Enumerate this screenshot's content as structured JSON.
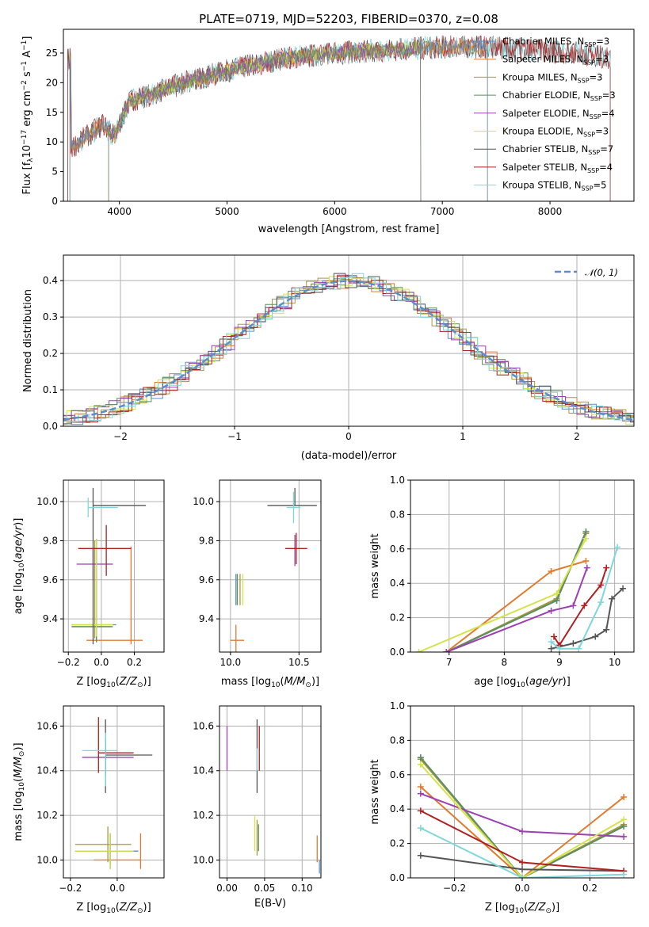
{
  "figure": {
    "title": "PLATE=0719, MJD=52203, FIBERID=0370, z=0.08"
  },
  "colors": {
    "Chabrier MILES": "#5b8ccc",
    "Salpeter MILES": "#e07b2e",
    "Kroupa MILES": "#a89a3a",
    "Chabrier ELODIE": "#5e8f5e",
    "Salpeter ELODIE": "#9b3fb3",
    "Kroupa ELODIE": "#d4e34a",
    "Chabrier STELIB": "#555555",
    "Salpeter STELIB": "#b01f1f",
    "Kroupa STELIB": "#7fd6dc"
  },
  "chart_data": [
    {
      "id": "spectrum",
      "type": "line",
      "title": "PLATE=0719, MJD=52203, FIBERID=0370, z=0.08",
      "xlabel": "wavelength [Angstrom, rest frame]",
      "ylabel": "Flux [f_λ 10^-17 erg cm^-2 s^-1 A^-1]",
      "xlim": [
        3480,
        8780
      ],
      "ylim": [
        0,
        29
      ],
      "xticks": [
        4000,
        5000,
        6000,
        7000,
        8000
      ],
      "yticks": [
        0,
        5,
        10,
        15,
        20,
        25
      ],
      "grid": false,
      "legend_position": "right",
      "legend": [
        {
          "label": "Chabrier MILES, N",
          "sub": "SSP",
          "suffix": "=3",
          "model": "Chabrier MILES"
        },
        {
          "label": "Salpeter MILES, N",
          "sub": "SSP",
          "suffix": "=3",
          "model": "Salpeter MILES"
        },
        {
          "label": "Kroupa MILES, N",
          "sub": "SSP",
          "suffix": "=3",
          "model": "Kroupa MILES"
        },
        {
          "label": "Chabrier ELODIE, N",
          "sub": "SSP",
          "suffix": "=3",
          "model": "Chabrier ELODIE"
        },
        {
          "label": "Salpeter ELODIE, N",
          "sub": "SSP",
          "suffix": "=4",
          "model": "Salpeter ELODIE"
        },
        {
          "label": "Kroupa ELODIE, N",
          "sub": "SSP",
          "suffix": "=3",
          "model": "Kroupa ELODIE"
        },
        {
          "label": "Chabrier STELIB, N",
          "sub": "SSP",
          "suffix": "=7",
          "model": "Chabrier STELIB"
        },
        {
          "label": "Salpeter STELIB, N",
          "sub": "SSP",
          "suffix": "=4",
          "model": "Salpeter STELIB"
        },
        {
          "label": "Kroupa STELIB, N",
          "sub": "SSP",
          "suffix": "=5",
          "model": "Kroupa STELIB"
        }
      ],
      "continuum": {
        "x": [
          3550,
          3700,
          3850,
          3950,
          4100,
          4300,
          4600,
          5000,
          5500,
          6000,
          6500,
          7000,
          7400,
          7800,
          8300,
          8550
        ],
        "y": [
          9,
          11,
          13,
          11,
          17,
          18,
          20,
          22,
          24,
          25,
          25.5,
          26,
          26,
          25.5,
          25,
          24
        ]
      },
      "ranges": {
        "MILES": [
          3540,
          7420
        ],
        "ELODIE": [
          3900,
          6800
        ],
        "STELIB": [
          3520,
          8560
        ]
      }
    },
    {
      "id": "residuals",
      "type": "histogram",
      "xlabel": "(data-model)/error",
      "ylabel": "Normed distribution",
      "xlim": [
        -2.5,
        2.5
      ],
      "ylim": [
        0,
        0.47
      ],
      "xticks": [
        -2,
        -1,
        0,
        1,
        2
      ],
      "yticks": [
        0.0,
        0.1,
        0.2,
        0.3,
        0.4
      ],
      "grid": true,
      "legend_position": "top-right",
      "reference_curve": {
        "label": "𝒩(0, 1)",
        "style": "dashed",
        "color": "#5b8ccc"
      },
      "bin_width": 0.1
    },
    {
      "id": "age_vs_Z",
      "type": "errorbar",
      "xlabel": "Z [log10(Z/Z☉)]",
      "ylabel": "age [log10(age/yr)]",
      "xlim": [
        -0.23,
        0.38
      ],
      "ylim": [
        9.23,
        10.11
      ],
      "xticks": [
        -0.2,
        0.0,
        0.2
      ],
      "yticks": [
        9.4,
        9.6,
        9.8,
        10.0
      ],
      "grid": true,
      "points": [
        {
          "model": "Chabrier MILES",
          "x": -0.03,
          "xerr": [
            0.15,
            0.12
          ],
          "y": 9.37,
          "yerr": [
            0.09,
            0.44
          ]
        },
        {
          "model": "Salpeter MILES",
          "x": 0.18,
          "xerr": [
            0.27,
            0.07
          ],
          "y": 9.29,
          "yerr": [
            0.02,
            0.48
          ]
        },
        {
          "model": "Kroupa MILES",
          "x": -0.04,
          "xerr": [
            0.14,
            0.1
          ],
          "y": 9.36,
          "yerr": [
            0.06,
            0.44
          ]
        },
        {
          "model": "Chabrier ELODIE",
          "x": -0.03,
          "xerr": [
            0.15,
            0.1
          ],
          "y": 9.36,
          "yerr": [
            0.08,
            0.44
          ]
        },
        {
          "model": "Salpeter ELODIE",
          "x": -0.05,
          "xerr": [
            0.1,
            0.12
          ],
          "y": 9.68,
          "yerr": [
            0.0,
            0.0
          ]
        },
        {
          "model": "Kroupa ELODIE",
          "x": -0.03,
          "xerr": [
            0.15,
            0.1
          ],
          "y": 9.37,
          "yerr": [
            0.06,
            0.44
          ]
        },
        {
          "model": "Chabrier STELIB",
          "x": -0.05,
          "xerr": [
            0.0,
            0.32
          ],
          "y": 9.98,
          "yerr": [
            0.71,
            0.09
          ]
        },
        {
          "model": "Salpeter STELIB",
          "x": 0.03,
          "xerr": [
            0.17,
            0.15
          ],
          "y": 9.76,
          "yerr": [
            0.14,
            0.12
          ]
        },
        {
          "model": "Kroupa STELIB",
          "x": -0.08,
          "xerr": [
            0.0,
            0.18
          ],
          "y": 9.97,
          "yerr": [
            0.05,
            0.05
          ]
        }
      ]
    },
    {
      "id": "age_vs_mass",
      "type": "errorbar",
      "xlabel": "mass [log10(M/M☉)]",
      "yticks": [
        9.4,
        9.6,
        9.8,
        10.0
      ],
      "xlim": [
        9.92,
        10.66
      ],
      "ylim": [
        9.23,
        10.11
      ],
      "xticks": [
        10.0,
        10.5
      ],
      "grid": true,
      "points": [
        {
          "model": "Chabrier MILES",
          "x": 10.04,
          "xerr": [
            0.0,
            0.0
          ],
          "y": 9.55,
          "yerr": [
            0.0,
            0.0
          ]
        },
        {
          "model": "Salpeter MILES",
          "x": 10.04,
          "xerr": [
            0.04,
            0.06
          ],
          "y": 9.29,
          "yerr": [
            0.0,
            0.0
          ]
        },
        {
          "model": "Kroupa MILES",
          "x": 10.07,
          "xerr": [
            0.0,
            0.0
          ],
          "y": 9.55,
          "yerr": [
            0.0,
            0.0
          ]
        },
        {
          "model": "Chabrier ELODIE",
          "x": 10.05,
          "xerr": [
            0.0,
            0.0
          ],
          "y": 9.55,
          "yerr": [
            0.0,
            0.0
          ]
        },
        {
          "model": "Salpeter ELODIE",
          "x": 10.47,
          "xerr": [
            0.0,
            0.0
          ],
          "y": 9.75,
          "yerr": [
            0.0,
            0.0
          ]
        },
        {
          "model": "Kroupa ELODIE",
          "x": 10.09,
          "xerr": [
            0.0,
            0.0
          ],
          "y": 9.55,
          "yerr": [
            0.0,
            0.0
          ]
        },
        {
          "model": "Chabrier STELIB",
          "x": 10.47,
          "xerr": [
            0.2,
            0.16
          ],
          "y": 9.98,
          "yerr": [
            0.0,
            0.09
          ]
        },
        {
          "model": "Salpeter STELIB",
          "x": 10.48,
          "xerr": [
            0.08,
            0.08
          ],
          "y": 9.76,
          "yerr": [
            0.0,
            0.0
          ]
        },
        {
          "model": "Kroupa STELIB",
          "x": 10.46,
          "xerr": [
            0.05,
            0.05
          ],
          "y": 9.97,
          "yerr": [
            0.0,
            0.0
          ]
        }
      ]
    },
    {
      "id": "mass_weight_vs_age",
      "type": "line",
      "xlabel": "age [log10(age/yr)]",
      "ylabel": "mass weight",
      "xlim": [
        6.3,
        10.35
      ],
      "ylim": [
        0,
        1.0
      ],
      "xticks": [
        7,
        8,
        9,
        10
      ],
      "yticks": [
        0.0,
        0.2,
        0.4,
        0.6,
        0.8,
        1.0
      ],
      "grid": true,
      "series": [
        {
          "model": "Chabrier MILES",
          "x": [
            6.95,
            8.95,
            9.48
          ],
          "y": [
            0.0,
            0.3,
            0.7
          ]
        },
        {
          "model": "Salpeter MILES",
          "x": [
            6.95,
            8.85,
            9.48
          ],
          "y": [
            0.0,
            0.47,
            0.53
          ]
        },
        {
          "model": "Kroupa MILES",
          "x": [
            6.95,
            8.95,
            9.48
          ],
          "y": [
            0.0,
            0.31,
            0.69
          ]
        },
        {
          "model": "Chabrier ELODIE",
          "x": [
            6.95,
            8.95,
            9.48
          ],
          "y": [
            0.0,
            0.3,
            0.7
          ]
        },
        {
          "model": "Salpeter ELODIE",
          "x": [
            6.95,
            8.85,
            9.25,
            9.5
          ],
          "y": [
            0.0,
            0.24,
            0.27,
            0.49
          ]
        },
        {
          "model": "Kroupa ELODIE",
          "x": [
            6.45,
            8.95,
            9.48
          ],
          "y": [
            0.0,
            0.34,
            0.66
          ]
        },
        {
          "model": "Chabrier STELIB",
          "x": [
            8.85,
            9.25,
            9.65,
            9.85,
            9.95,
            10.15
          ],
          "y": [
            0.02,
            0.05,
            0.09,
            0.13,
            0.31,
            0.37
          ]
        },
        {
          "model": "Salpeter STELIB",
          "x": [
            8.9,
            9.0,
            9.45,
            9.75,
            9.85
          ],
          "y": [
            0.09,
            0.04,
            0.27,
            0.39,
            0.49
          ]
        },
        {
          "model": "Kroupa STELIB",
          "x": [
            8.85,
            9.0,
            9.35,
            9.75,
            10.05
          ],
          "y": [
            0.06,
            0.02,
            0.02,
            0.29,
            0.61
          ]
        }
      ]
    },
    {
      "id": "mass_vs_Z",
      "type": "errorbar",
      "xlabel": "Z [log10(Z/Z☉)]",
      "ylabel": "mass [log10(M/M☉)]",
      "xlim": [
        -0.23,
        0.2
      ],
      "ylim": [
        9.92,
        10.69
      ],
      "xticks": [
        -0.2,
        0.0
      ],
      "yticks": [
        10.0,
        10.2,
        10.4,
        10.6
      ],
      "grid": true,
      "points": [
        {
          "model": "Chabrier MILES",
          "x": -0.03,
          "xerr": [
            0.15,
            0.12
          ],
          "y": 10.04,
          "yerr": [
            0.06,
            0.08
          ]
        },
        {
          "model": "Salpeter MILES",
          "x": 0.1,
          "xerr": [
            0.2,
            0.0
          ],
          "y": 10.0,
          "yerr": [
            0.04,
            0.12
          ]
        },
        {
          "model": "Kroupa MILES",
          "x": -0.04,
          "xerr": [
            0.14,
            0.1
          ],
          "y": 10.07,
          "yerr": [
            0.0,
            0.0
          ]
        },
        {
          "model": "Chabrier ELODIE",
          "x": -0.03,
          "xerr": [
            0.15,
            0.1
          ],
          "y": 10.04,
          "yerr": [
            0.0,
            0.0
          ]
        },
        {
          "model": "Salpeter ELODIE",
          "x": -0.05,
          "xerr": [
            0.1,
            0.12
          ],
          "y": 10.46,
          "yerr": [
            0.0,
            0.0
          ]
        },
        {
          "model": "Kroupa ELODIE",
          "x": -0.03,
          "xerr": [
            0.15,
            0.1
          ],
          "y": 10.04,
          "yerr": [
            0.0,
            0.0
          ]
        },
        {
          "model": "Chabrier STELIB",
          "x": -0.05,
          "xerr": [
            0.0,
            0.2
          ],
          "y": 10.47,
          "yerr": [
            0.17,
            0.16
          ]
        },
        {
          "model": "Salpeter STELIB",
          "x": -0.08,
          "xerr": [
            0.0,
            0.15
          ],
          "y": 10.48,
          "yerr": [
            0.09,
            0.16
          ]
        },
        {
          "model": "Kroupa STELIB",
          "x": -0.05,
          "xerr": [
            0.1,
            0.05
          ],
          "y": 10.49,
          "yerr": [
            0.16,
            0.08
          ]
        }
      ]
    },
    {
      "id": "mass_vs_ebv",
      "type": "errorbar",
      "xlabel": "E(B-V)",
      "xlim": [
        -0.01,
        0.125
      ],
      "ylim": [
        9.92,
        10.69
      ],
      "xticks": [
        0.0,
        0.05,
        0.1
      ],
      "yticks": [
        10.0,
        10.2,
        10.4,
        10.6
      ],
      "grid": true,
      "points": [
        {
          "model": "Chabrier MILES",
          "x": 0.123,
          "xerr": [
            0.0,
            0.0
          ],
          "y": 10.0,
          "yerr": [
            0.06,
            0.0
          ]
        },
        {
          "model": "Salpeter MILES",
          "x": 0.12,
          "xerr": [
            0.0,
            0.0
          ],
          "y": 10.05,
          "yerr": [
            0.06,
            0.06
          ]
        },
        {
          "model": "Kroupa MILES",
          "x": 0.04,
          "xerr": [
            0.0,
            0.0
          ],
          "y": 10.1,
          "yerr": [
            0.0,
            0.0
          ]
        },
        {
          "model": "Chabrier ELODIE",
          "x": 0.042,
          "xerr": [
            0.0,
            0.0
          ],
          "y": 10.1,
          "yerr": [
            0.06,
            0.06
          ]
        },
        {
          "model": "Salpeter ELODIE",
          "x": 0.0,
          "xerr": [
            0.0,
            0.0
          ],
          "y": 10.5,
          "yerr": [
            0.1,
            0.1
          ]
        },
        {
          "model": "Kroupa ELODIE",
          "x": 0.037,
          "xerr": [
            0.0,
            0.0
          ],
          "y": 10.12,
          "yerr": [
            0.08,
            0.08
          ]
        },
        {
          "model": "Chabrier STELIB",
          "x": 0.04,
          "xerr": [
            0.0,
            0.0
          ],
          "y": 10.47,
          "yerr": [
            0.17,
            0.16
          ]
        },
        {
          "model": "Salpeter STELIB",
          "x": 0.043,
          "xerr": [
            0.0,
            0.0
          ],
          "y": 10.5,
          "yerr": [
            0.1,
            0.1
          ]
        },
        {
          "model": "Kroupa STELIB",
          "x": 0.04,
          "xerr": [
            0.0,
            0.0
          ],
          "y": 10.45,
          "yerr": [
            0.05,
            0.05
          ]
        }
      ]
    },
    {
      "id": "mass_weight_vs_Z",
      "type": "line",
      "xlabel": "Z [log10(Z/Z☉)]",
      "ylabel": "mass weight",
      "xlim": [
        -0.33,
        0.33
      ],
      "ylim": [
        0,
        1.0
      ],
      "xticks": [
        -0.2,
        0.0,
        0.2
      ],
      "yticks": [
        0.0,
        0.2,
        0.4,
        0.6,
        0.8,
        1.0
      ],
      "grid": true,
      "series": [
        {
          "model": "Chabrier MILES",
          "x": [
            -0.3,
            0.0,
            0.3
          ],
          "y": [
            0.7,
            0.0,
            0.3
          ]
        },
        {
          "model": "Salpeter MILES",
          "x": [
            -0.3,
            0.0,
            0.3
          ],
          "y": [
            0.53,
            0.0,
            0.47
          ]
        },
        {
          "model": "Kroupa MILES",
          "x": [
            -0.3,
            0.0,
            0.3
          ],
          "y": [
            0.69,
            0.0,
            0.31
          ]
        },
        {
          "model": "Chabrier ELODIE",
          "x": [
            -0.3,
            0.0,
            0.3
          ],
          "y": [
            0.7,
            0.0,
            0.3
          ]
        },
        {
          "model": "Salpeter ELODIE",
          "x": [
            -0.3,
            0.0,
            0.3
          ],
          "y": [
            0.49,
            0.27,
            0.24
          ]
        },
        {
          "model": "Kroupa ELODIE",
          "x": [
            -0.3,
            0.0,
            0.3
          ],
          "y": [
            0.66,
            0.0,
            0.34
          ]
        },
        {
          "model": "Chabrier STELIB",
          "x": [
            -0.3,
            0.0,
            0.3
          ],
          "y": [
            0.13,
            0.05,
            0.04
          ]
        },
        {
          "model": "Salpeter STELIB",
          "x": [
            -0.3,
            0.0,
            0.3
          ],
          "y": [
            0.39,
            0.09,
            0.04
          ]
        },
        {
          "model": "Kroupa STELIB",
          "x": [
            -0.3,
            0.0,
            0.3
          ],
          "y": [
            0.29,
            0.0,
            0.02
          ]
        }
      ]
    }
  ]
}
